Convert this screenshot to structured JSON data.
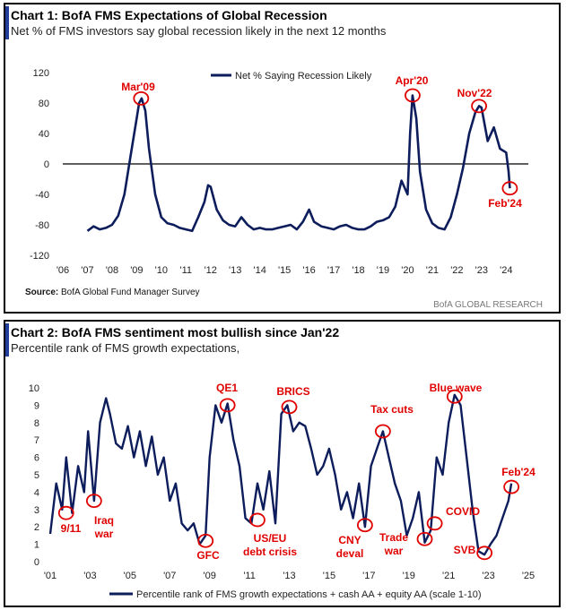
{
  "colors": {
    "line": "#0d1d5c",
    "annotation": "#e00000",
    "zero_line": "#000000",
    "accent_bar": "#1f3f9a"
  },
  "chart_data": [
    {
      "type": "line",
      "title": "Chart 1: BofA FMS Expectations of Global Recession",
      "subtitle": "Net % of FMS investors say global recession likely in the next 12 months",
      "legend": {
        "entries": [
          "Net % Saying Recession Likely"
        ],
        "placement": "top"
      },
      "ylim": [
        -120,
        120
      ],
      "yticks": [
        "120",
        "80",
        "40",
        "0",
        "-40",
        "-80",
        "-120"
      ],
      "xticks": [
        "'06",
        "'07",
        "'08",
        "'09",
        "'10",
        "'11",
        "'12",
        "'13",
        "'14",
        "'15",
        "'16",
        "'17",
        "'18",
        "'19",
        "'20",
        "'21",
        "'22",
        "'23",
        "'24"
      ],
      "grid": false,
      "series": [
        {
          "name": "Net % Saying Recession Likely",
          "x": [
            2007.0,
            2007.25,
            2007.5,
            2007.75,
            2008.0,
            2008.25,
            2008.5,
            2008.75,
            2009.0,
            2009.1,
            2009.2,
            2009.35,
            2009.5,
            2009.75,
            2010.0,
            2010.25,
            2010.5,
            2010.75,
            2011.0,
            2011.25,
            2011.5,
            2011.75,
            2011.9,
            2012.0,
            2012.25,
            2012.5,
            2012.75,
            2013.0,
            2013.25,
            2013.5,
            2013.75,
            2014.0,
            2014.25,
            2014.5,
            2014.75,
            2015.0,
            2015.25,
            2015.5,
            2015.75,
            2016.0,
            2016.2,
            2016.5,
            2016.75,
            2017.0,
            2017.25,
            2017.5,
            2017.75,
            2018.0,
            2018.25,
            2018.5,
            2018.75,
            2019.0,
            2019.25,
            2019.5,
            2019.75,
            2020.0,
            2020.1,
            2020.2,
            2020.35,
            2020.5,
            2020.75,
            2021.0,
            2021.25,
            2021.5,
            2021.75,
            2022.0,
            2022.25,
            2022.5,
            2022.75,
            2022.9,
            2023.0,
            2023.25,
            2023.5,
            2023.75,
            2024.0,
            2024.1,
            2024.15
          ],
          "values": [
            -88,
            -82,
            -86,
            -84,
            -80,
            -68,
            -40,
            10,
            60,
            80,
            86,
            70,
            20,
            -40,
            -70,
            -78,
            -80,
            -84,
            -86,
            -88,
            -70,
            -50,
            -28,
            -30,
            -60,
            -74,
            -80,
            -82,
            -70,
            -80,
            -86,
            -84,
            -86,
            -86,
            -84,
            -82,
            -80,
            -86,
            -76,
            -60,
            -76,
            -82,
            -84,
            -86,
            -82,
            -80,
            -84,
            -86,
            -86,
            -82,
            -76,
            -74,
            -70,
            -56,
            -22,
            -40,
            40,
            90,
            60,
            -10,
            -60,
            -78,
            -84,
            -86,
            -70,
            -40,
            -5,
            40,
            68,
            76,
            74,
            30,
            48,
            20,
            15,
            -10,
            -32
          ]
        }
      ],
      "annotations": [
        "Mar'09",
        "Apr'20",
        "Nov'22",
        "Feb'24"
      ],
      "source": "BofA Global Fund Manager Survey",
      "source_prefix": "Source:",
      "brand": "BofA GLOBAL RESEARCH"
    },
    {
      "type": "line",
      "title": "Chart 2: BofA FMS sentiment most bullish since Jan'22",
      "subtitle": "Percentile rank of FMS growth expectations,",
      "legend": {
        "entries": [
          "Percentile rank of FMS growth expectations + cash AA + equity AA (scale 1-10)"
        ],
        "placement": "bottom"
      },
      "ylim": [
        0,
        10
      ],
      "yticks": [
        "10",
        "9",
        "8",
        "7",
        "6",
        "5",
        "4",
        "3",
        "2",
        "1",
        "0"
      ],
      "xticks": [
        "'01",
        "'03",
        "'05",
        "'07",
        "'09",
        "'11",
        "'13",
        "'15",
        "'17",
        "'19",
        "'21",
        "'23",
        "'25"
      ],
      "grid": false,
      "series": [
        {
          "name": "Percentile rank of FMS growth expectations + cash AA + equity AA (scale 1-10)",
          "x": [
            2001.0,
            2001.3,
            2001.6,
            2001.8,
            2002.1,
            2002.4,
            2002.7,
            2002.9,
            2003.2,
            2003.5,
            2003.8,
            2004.0,
            2004.3,
            2004.6,
            2004.9,
            2005.2,
            2005.5,
            2005.8,
            2006.1,
            2006.4,
            2006.7,
            2007.0,
            2007.3,
            2007.6,
            2007.9,
            2008.2,
            2008.5,
            2008.8,
            2009.0,
            2009.3,
            2009.6,
            2009.9,
            2010.2,
            2010.5,
            2010.8,
            2011.1,
            2011.4,
            2011.7,
            2012.0,
            2012.3,
            2012.6,
            2012.9,
            2013.2,
            2013.5,
            2013.8,
            2014.1,
            2014.4,
            2014.7,
            2015.0,
            2015.3,
            2015.6,
            2015.9,
            2016.2,
            2016.5,
            2016.8,
            2017.1,
            2017.4,
            2017.7,
            2018.0,
            2018.3,
            2018.6,
            2018.9,
            2019.2,
            2019.5,
            2019.8,
            2020.1,
            2020.4,
            2020.7,
            2021.0,
            2021.3,
            2021.6,
            2021.9,
            2022.2,
            2022.5,
            2022.8,
            2023.1,
            2023.4,
            2023.7,
            2024.0,
            2024.15
          ],
          "values": [
            1.6,
            4.5,
            3.0,
            6.0,
            2.8,
            5.5,
            4.0,
            7.5,
            3.5,
            8.0,
            9.4,
            8.5,
            6.8,
            6.5,
            7.8,
            6.0,
            7.5,
            5.5,
            7.2,
            5.0,
            6.0,
            3.5,
            4.5,
            2.2,
            1.8,
            2.2,
            1.0,
            1.5,
            6.0,
            9.0,
            8.0,
            9.1,
            7.0,
            5.5,
            2.5,
            2.2,
            4.5,
            3.0,
            5.2,
            2.2,
            8.5,
            9.0,
            7.5,
            8.0,
            7.8,
            6.5,
            5.0,
            5.5,
            6.5,
            5.0,
            3.0,
            4.0,
            2.5,
            4.5,
            2.0,
            5.5,
            6.5,
            7.5,
            6.0,
            4.5,
            3.5,
            1.5,
            2.5,
            4.0,
            1.1,
            1.8,
            6.0,
            5.0,
            8.0,
            9.6,
            9.0,
            6.0,
            3.0,
            0.6,
            0.4,
            1.0,
            1.5,
            2.5,
            3.5,
            4.5
          ]
        }
      ],
      "annotations": [
        "9/11",
        "Iraq war",
        "GFC",
        "QE1",
        "US/EU debt crisis",
        "BRICS",
        "CNY deval",
        "Tax cuts",
        "Trade war",
        "COVID",
        "Blue wave",
        "SVB",
        "Feb'24"
      ]
    }
  ]
}
